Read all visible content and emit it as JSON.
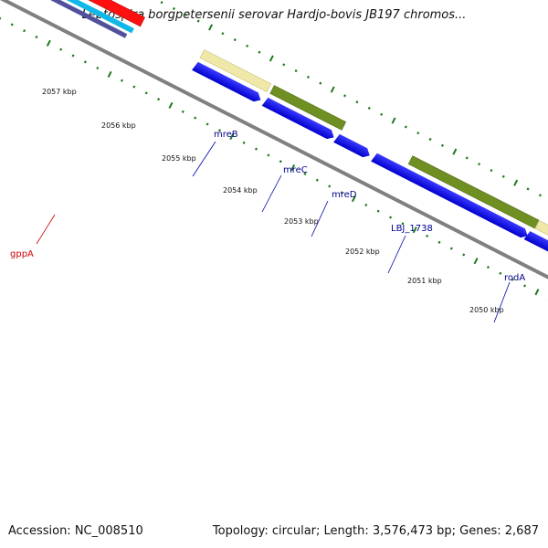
{
  "title": "Leptospira borgpetersenii serovar Hardjo-bovis JB197 chromos...",
  "footer": {
    "accession": "Accession: NC_008510",
    "topology": "Topology: circular; Length: 3,576,473 bp; Genes: 2,687"
  },
  "ticks": [
    "2057 kbp",
    "2056 kbp",
    "2055 kbp",
    "2054 kbp",
    "2053 kbp",
    "2052 kbp",
    "2051 kbp",
    "2050 kbp"
  ],
  "genes": [
    {
      "name": "mreB",
      "color": "#00008b"
    },
    {
      "name": "mreC",
      "color": "#00008b"
    },
    {
      "name": "mreD",
      "color": "#00008b"
    },
    {
      "name": "LBJ_1738",
      "color": "#00008b"
    },
    {
      "name": "rodA",
      "color": "#00008b"
    },
    {
      "name": "gppA",
      "color": "#d40000"
    }
  ],
  "colors": {
    "backbone": "#7f7f7f",
    "cds": "#0000ee",
    "rna_or_gene_red": "#ee0000",
    "cyan_track": "#10b8e8",
    "purple_track": "#48489a",
    "olive_feature": "#6b8e23",
    "khaki_feature": "#eee8aa",
    "tick_dots": "#1e7a1e"
  }
}
